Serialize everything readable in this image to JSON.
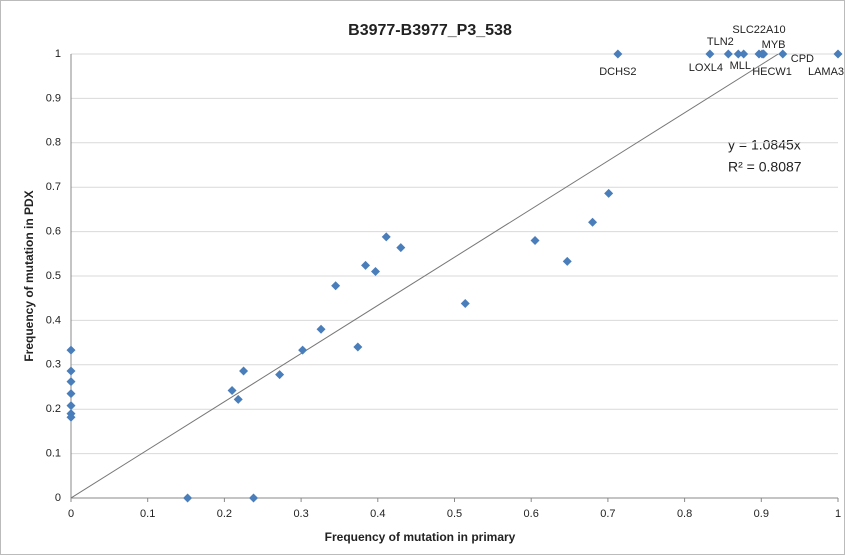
{
  "chart_data": {
    "type": "scatter",
    "title": "B3977-B3977_P3_538",
    "x_label": "Frequency of mutation in primary",
    "y_label": "Frequency of mutation in PDX",
    "x": [
      0,
      0,
      0,
      0,
      0,
      0,
      0,
      0.152,
      0.238,
      0.21,
      0.218,
      0.225,
      0.272,
      0.302,
      0.326,
      0.345,
      0.374,
      0.384,
      0.397,
      0.411,
      0.43,
      0.514,
      0.605,
      0.647,
      0.68,
      0.701,
      0.713,
      0.833,
      0.857,
      0.87,
      0.877,
      0.897,
      0.901,
      0.903,
      0.928,
      1
    ],
    "values": [
      0.333,
      0.286,
      0.262,
      0.235,
      0.208,
      0.19,
      0.182,
      0,
      0,
      0.242,
      0.222,
      0.286,
      0.278,
      0.333,
      0.38,
      0.478,
      0.34,
      0.524,
      0.51,
      0.588,
      0.564,
      0.438,
      0.58,
      0.533,
      0.621,
      0.686,
      1,
      1,
      1,
      1,
      1,
      1,
      1,
      1,
      1,
      1
    ],
    "labels": [
      null,
      null,
      null,
      null,
      null,
      null,
      null,
      null,
      null,
      null,
      null,
      null,
      null,
      null,
      null,
      null,
      null,
      null,
      null,
      null,
      null,
      null,
      null,
      null,
      null,
      null,
      "DCHS2",
      "LOXL4",
      "TLN2",
      "MLL",
      null,
      "SLC22A10",
      "HECW1",
      "MYB",
      "CPD",
      "LAMA3"
    ],
    "color": "#4a7ebb",
    "xlim": [
      0,
      1
    ],
    "xticks": [
      0,
      0.1,
      0.2,
      0.3,
      0.4,
      0.5,
      0.6,
      0.7,
      0.8,
      0.9,
      1
    ],
    "ylim": [
      0,
      1
    ],
    "yticks": [
      0,
      0.1,
      0.2,
      0.3,
      0.4,
      0.5,
      0.6,
      0.7,
      0.8,
      0.9,
      1
    ],
    "grid": true,
    "trendline": {
      "slope": 1.0845,
      "equation": "y = 1.0845x",
      "r2": "R² = 0.8087"
    }
  }
}
